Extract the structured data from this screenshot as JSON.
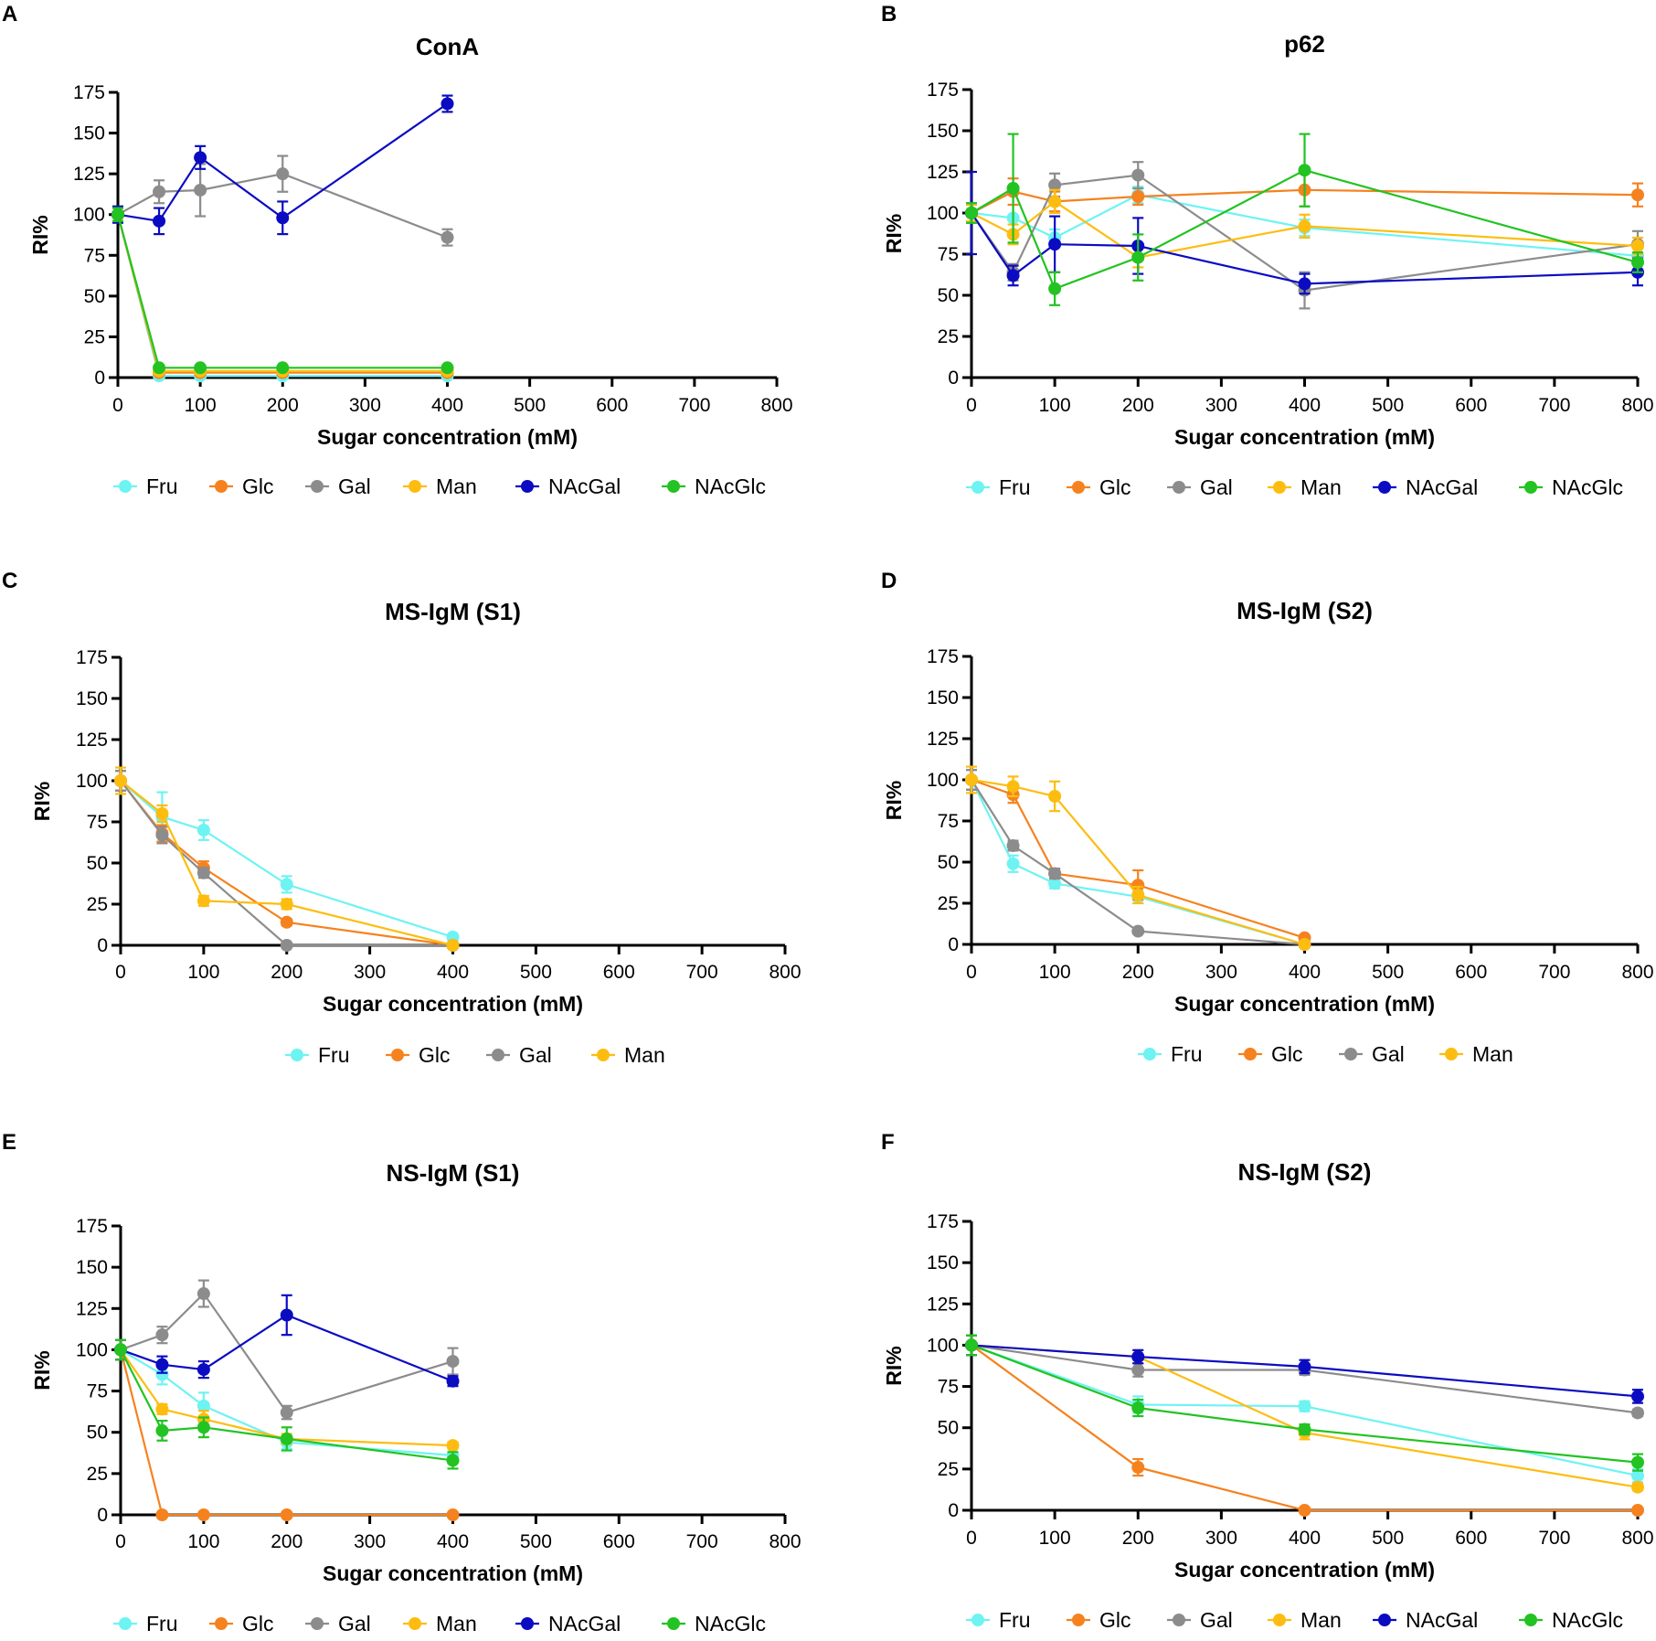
{
  "colors": {
    "Fru": "#6ef3f3",
    "Glc": "#f5821f",
    "Gal": "#8c8c8c",
    "Man": "#fdbd10",
    "NAcGal": "#0b0bc2",
    "NAcGlc": "#22c322"
  },
  "chart_data": [
    {
      "panel": "A",
      "type": "line",
      "title": "ConA",
      "xlabel": "Sugar concentration (mM)",
      "ylabel": "RI%",
      "xlim": [
        0,
        800
      ],
      "ylim": [
        0,
        175
      ],
      "xticks": [
        0,
        100,
        200,
        300,
        400,
        500,
        600,
        700,
        800
      ],
      "yticks": [
        0,
        25,
        50,
        75,
        100,
        125,
        150,
        175
      ],
      "legend": [
        "Fru",
        "Glc",
        "Gal",
        "Man",
        "NAcGal",
        "NAcGlc"
      ],
      "series": [
        {
          "name": "Fru",
          "x": [
            0,
            50,
            100,
            200,
            400
          ],
          "values": [
            100,
            1,
            1,
            1,
            1
          ],
          "err": [
            4,
            1,
            1,
            1,
            1
          ]
        },
        {
          "name": "Glc",
          "x": [
            0,
            50,
            100,
            200,
            400
          ],
          "values": [
            100,
            3,
            3,
            3,
            3
          ],
          "err": [
            4,
            1,
            1,
            1,
            1
          ]
        },
        {
          "name": "Gal",
          "x": [
            0,
            50,
            100,
            200,
            400
          ],
          "values": [
            100,
            114,
            115,
            125,
            86
          ],
          "err": [
            5,
            7,
            16,
            11,
            5
          ]
        },
        {
          "name": "Man",
          "x": [
            0,
            50,
            100,
            200,
            400
          ],
          "values": [
            100,
            4,
            4,
            4,
            4
          ],
          "err": [
            4,
            1,
            1,
            1,
            1
          ]
        },
        {
          "name": "NAcGal",
          "x": [
            0,
            50,
            100,
            200,
            400
          ],
          "values": [
            100,
            96,
            135,
            98,
            168
          ],
          "err": [
            5,
            8,
            7,
            10,
            5
          ]
        },
        {
          "name": "NAcGlc",
          "x": [
            0,
            50,
            100,
            200,
            400
          ],
          "values": [
            100,
            6,
            6,
            6,
            6
          ],
          "err": [
            4,
            1,
            1,
            1,
            1
          ]
        }
      ]
    },
    {
      "panel": "B",
      "type": "line",
      "title": "p62",
      "xlabel": "Sugar concentration (mM)",
      "ylabel": "RI%",
      "xlim": [
        0,
        800
      ],
      "ylim": [
        0,
        175
      ],
      "xticks": [
        0,
        100,
        200,
        300,
        400,
        500,
        600,
        700,
        800
      ],
      "yticks": [
        0,
        25,
        50,
        75,
        100,
        125,
        150,
        175
      ],
      "legend": [
        "Fru",
        "Glc",
        "Gal",
        "Man",
        "NAcGal",
        "NAcGlc"
      ],
      "series": [
        {
          "name": "Fru",
          "x": [
            0,
            50,
            100,
            200,
            400,
            800
          ],
          "values": [
            100,
            97,
            85,
            111,
            91,
            74
          ],
          "err": [
            6,
            8,
            5,
            5,
            5,
            5
          ]
        },
        {
          "name": "Glc",
          "x": [
            0,
            50,
            100,
            200,
            400,
            800
          ],
          "values": [
            100,
            113,
            107,
            110,
            114,
            111
          ],
          "err": [
            5,
            8,
            6,
            5,
            10,
            7
          ]
        },
        {
          "name": "Gal",
          "x": [
            0,
            50,
            100,
            200,
            400,
            800
          ],
          "values": [
            100,
            64,
            117,
            123,
            53,
            81
          ],
          "err": [
            6,
            5,
            7,
            8,
            11,
            8
          ]
        },
        {
          "name": "Man",
          "x": [
            0,
            50,
            100,
            200,
            400,
            800
          ],
          "values": [
            100,
            87,
            107,
            73,
            92,
            80
          ],
          "err": [
            5,
            6,
            7,
            6,
            7,
            5
          ]
        },
        {
          "name": "NAcGal",
          "x": [
            0,
            50,
            100,
            200,
            400,
            800
          ],
          "values": [
            100,
            62,
            81,
            80,
            57,
            64
          ],
          "err": [
            25,
            6,
            17,
            17,
            6,
            8
          ]
        },
        {
          "name": "NAcGlc",
          "x": [
            0,
            50,
            100,
            200,
            400,
            800
          ],
          "values": [
            100,
            115,
            54,
            73,
            126,
            70
          ],
          "err": [
            6,
            33,
            10,
            14,
            22,
            6
          ]
        }
      ]
    },
    {
      "panel": "C",
      "type": "line",
      "title": "MS-IgM (S1)",
      "xlabel": "Sugar concentration (mM)",
      "ylabel": "RI%",
      "xlim": [
        0,
        800
      ],
      "ylim": [
        0,
        175
      ],
      "xticks": [
        0,
        100,
        200,
        300,
        400,
        500,
        600,
        700,
        800
      ],
      "yticks": [
        0,
        25,
        50,
        75,
        100,
        125,
        150,
        175
      ],
      "legend": [
        "Fru",
        "Glc",
        "Gal",
        "Man"
      ],
      "series": [
        {
          "name": "Fru",
          "x": [
            0,
            50,
            100,
            200,
            400
          ],
          "values": [
            100,
            78,
            70,
            37,
            5
          ],
          "err": [
            6,
            15,
            6,
            5,
            2
          ]
        },
        {
          "name": "Glc",
          "x": [
            0,
            50,
            100,
            200,
            400
          ],
          "values": [
            100,
            68,
            47,
            14,
            0
          ],
          "err": [
            6,
            5,
            4,
            2,
            1
          ]
        },
        {
          "name": "Gal",
          "x": [
            0,
            50,
            100,
            200,
            400
          ],
          "values": [
            100,
            67,
            44,
            0,
            0
          ],
          "err": [
            6,
            5,
            3,
            1,
            1
          ]
        },
        {
          "name": "Man",
          "x": [
            0,
            50,
            100,
            200,
            400
          ],
          "values": [
            100,
            80,
            27,
            25,
            0
          ],
          "err": [
            8,
            5,
            3,
            3,
            1
          ]
        }
      ]
    },
    {
      "panel": "D",
      "type": "line",
      "title": "MS-IgM (S2)",
      "xlabel": "Sugar concentration (mM)",
      "ylabel": "RI%",
      "xlim": [
        0,
        800
      ],
      "ylim": [
        0,
        175
      ],
      "xticks": [
        0,
        100,
        200,
        300,
        400,
        500,
        600,
        700,
        800
      ],
      "yticks": [
        0,
        25,
        50,
        75,
        100,
        125,
        150,
        175
      ],
      "legend": [
        "Fru",
        "Glc",
        "Gal",
        "Man"
      ],
      "series": [
        {
          "name": "Fru",
          "x": [
            0,
            50,
            100,
            200,
            400
          ],
          "values": [
            100,
            49,
            37,
            29,
            0
          ],
          "err": [
            6,
            5,
            3,
            4,
            1
          ]
        },
        {
          "name": "Glc",
          "x": [
            0,
            50,
            100,
            200,
            400
          ],
          "values": [
            100,
            91,
            43,
            36,
            4
          ],
          "err": [
            6,
            5,
            3,
            9,
            1
          ]
        },
        {
          "name": "Gal",
          "x": [
            0,
            50,
            100,
            200,
            400
          ],
          "values": [
            100,
            60,
            43,
            8,
            0
          ],
          "err": [
            6,
            3,
            3,
            1,
            1
          ]
        },
        {
          "name": "Man",
          "x": [
            0,
            50,
            100,
            200,
            400
          ],
          "values": [
            100,
            96,
            90,
            30,
            0
          ],
          "err": [
            8,
            6,
            9,
            5,
            1
          ]
        }
      ]
    },
    {
      "panel": "E",
      "type": "line",
      "title": "NS-IgM (S1)",
      "xlabel": "Sugar concentration (mM)",
      "ylabel": "RI%",
      "xlim": [
        0,
        800
      ],
      "ylim": [
        0,
        175
      ],
      "xticks": [
        0,
        100,
        200,
        300,
        400,
        500,
        600,
        700,
        800
      ],
      "yticks": [
        0,
        25,
        50,
        75,
        100,
        125,
        150,
        175
      ],
      "legend": [
        "Fru",
        "Glc",
        "Gal",
        "Man",
        "NAcGal",
        "NAcGlc"
      ],
      "series": [
        {
          "name": "Fru",
          "x": [
            0,
            50,
            100,
            200,
            400
          ],
          "values": [
            100,
            85,
            66,
            44,
            36
          ],
          "err": [
            6,
            6,
            8,
            4,
            5
          ]
        },
        {
          "name": "Glc",
          "x": [
            0,
            50,
            100,
            200,
            400
          ],
          "values": [
            100,
            0,
            0,
            0,
            0
          ],
          "err": [
            6,
            1,
            1,
            1,
            1
          ]
        },
        {
          "name": "Gal",
          "x": [
            0,
            50,
            100,
            200,
            400
          ],
          "values": [
            100,
            109,
            134,
            62,
            93
          ],
          "err": [
            6,
            5,
            8,
            4,
            8
          ]
        },
        {
          "name": "Man",
          "x": [
            0,
            50,
            100,
            200,
            400
          ],
          "values": [
            100,
            64,
            58,
            46,
            42
          ],
          "err": [
            6,
            3,
            5,
            3,
            2
          ]
        },
        {
          "name": "NAcGal",
          "x": [
            0,
            50,
            100,
            200,
            400
          ],
          "values": [
            100,
            91,
            88,
            121,
            81
          ],
          "err": [
            6,
            5,
            5,
            12,
            3
          ]
        },
        {
          "name": "NAcGlc",
          "x": [
            0,
            50,
            100,
            200,
            400
          ],
          "values": [
            100,
            51,
            53,
            46,
            33
          ],
          "err": [
            6,
            6,
            6,
            7,
            5
          ]
        }
      ]
    },
    {
      "panel": "F",
      "type": "line",
      "title": "NS-IgM (S2)",
      "xlabel": "Sugar concentration (mM)",
      "ylabel": "RI%",
      "xlim": [
        0,
        800
      ],
      "ylim": [
        0,
        175
      ],
      "xticks": [
        0,
        100,
        200,
        300,
        400,
        500,
        600,
        700,
        800
      ],
      "yticks": [
        0,
        25,
        50,
        75,
        100,
        125,
        150,
        175
      ],
      "legend": [
        "Fru",
        "Glc",
        "Gal",
        "Man",
        "NAcGal",
        "NAcGlc"
      ],
      "series": [
        {
          "name": "Fru",
          "x": [
            0,
            200,
            400,
            800
          ],
          "values": [
            100,
            64,
            63,
            21
          ],
          "err": [
            6,
            5,
            3,
            4
          ]
        },
        {
          "name": "Glc",
          "x": [
            0,
            200,
            400,
            800
          ],
          "values": [
            100,
            26,
            0,
            0
          ],
          "err": [
            6,
            5,
            1,
            1
          ]
        },
        {
          "name": "Gal",
          "x": [
            0,
            200,
            400,
            800
          ],
          "values": [
            100,
            85,
            85,
            59
          ],
          "err": [
            6,
            4,
            3,
            2
          ]
        },
        {
          "name": "Man",
          "x": [
            0,
            200,
            400,
            800
          ],
          "values": [
            100,
            93,
            47,
            14
          ],
          "err": [
            6,
            4,
            4,
            2
          ]
        },
        {
          "name": "NAcGal",
          "x": [
            0,
            200,
            400,
            800
          ],
          "values": [
            100,
            93,
            87,
            69
          ],
          "err": [
            6,
            4,
            4,
            4
          ]
        },
        {
          "name": "NAcGlc",
          "x": [
            0,
            200,
            400,
            800
          ],
          "values": [
            100,
            62,
            49,
            29
          ],
          "err": [
            6,
            5,
            3,
            5
          ]
        }
      ]
    }
  ]
}
